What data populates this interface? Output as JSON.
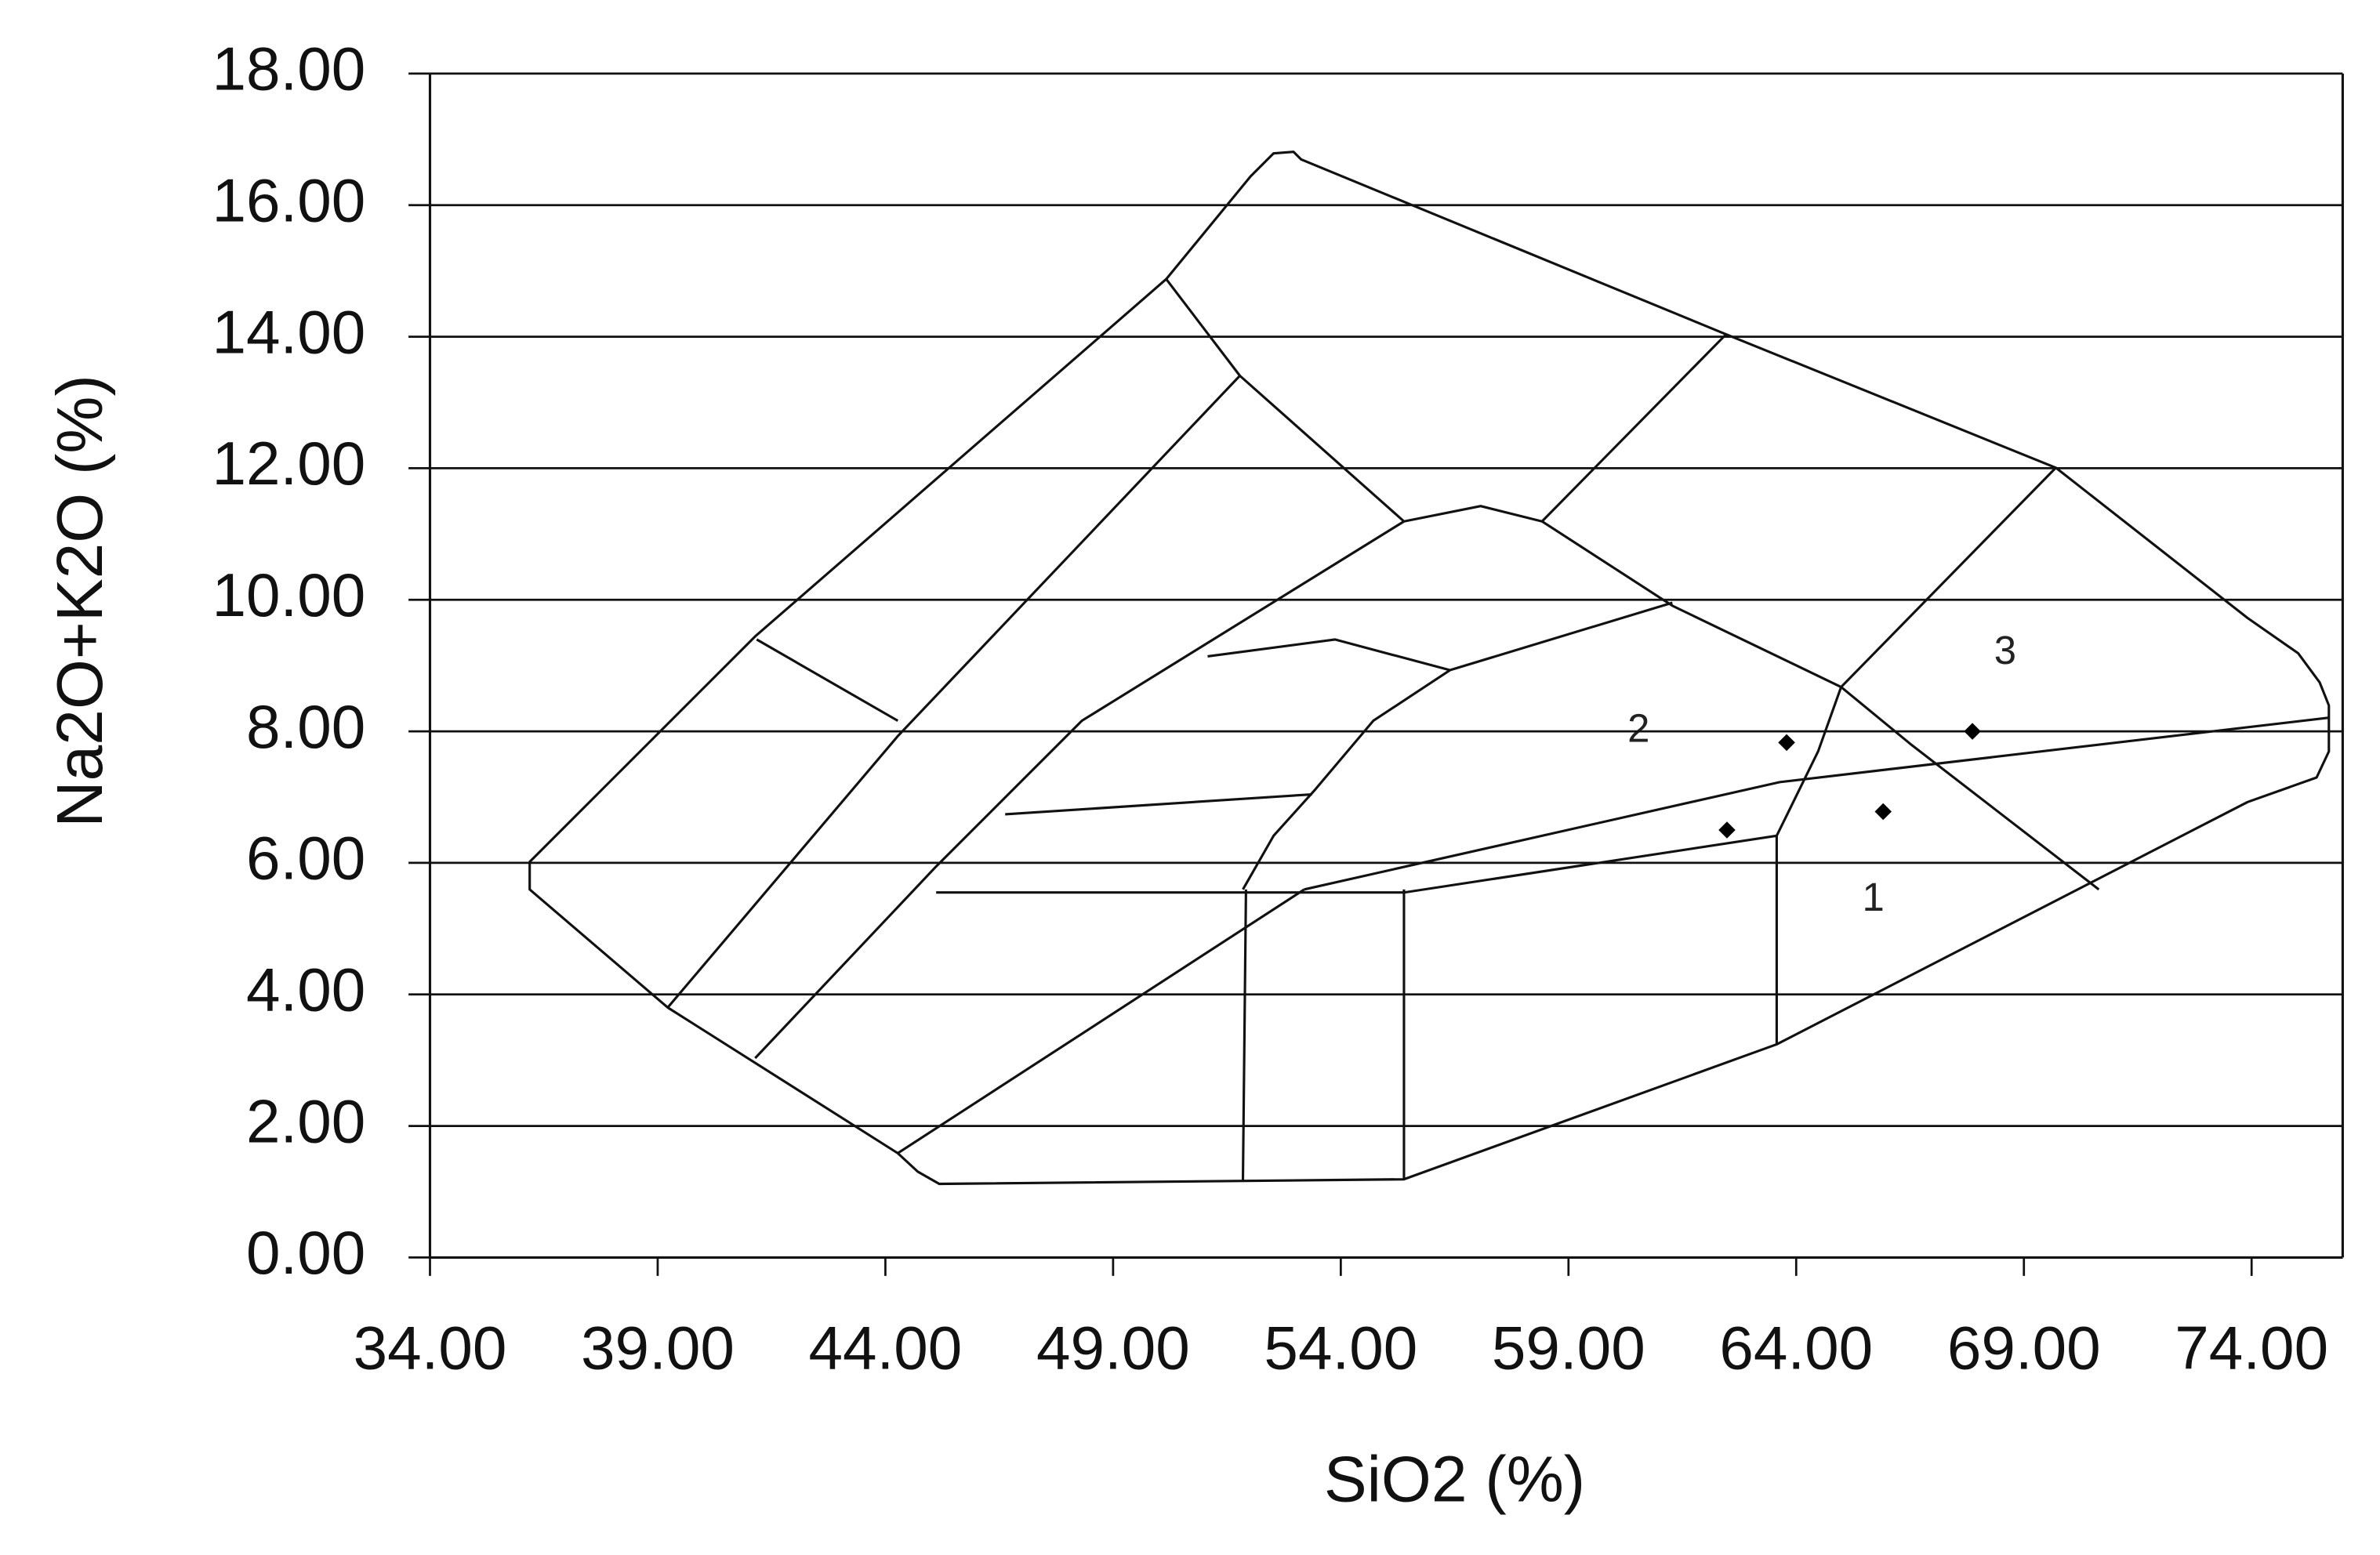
{
  "chart_data": {
    "type": "scatter",
    "x_label": "SiO2 (%)",
    "y_label": "Na2O+K2O (%)",
    "x": [
      62.48,
      63.79,
      65.91,
      67.87
    ],
    "values": [
      6.5,
      7.83,
      6.78,
      8.0
    ],
    "color": "#000000",
    "xlim": [
      34,
      76
    ],
    "ylim": [
      0,
      18
    ],
    "xticks": [
      {
        "value": 34,
        "label": "34.00"
      },
      {
        "value": 39,
        "label": "39.00"
      },
      {
        "value": 44,
        "label": "44.00"
      },
      {
        "value": 49,
        "label": "49.00"
      },
      {
        "value": 54,
        "label": "54.00"
      },
      {
        "value": 59,
        "label": "59.00"
      },
      {
        "value": 64,
        "label": "64.00"
      },
      {
        "value": 69,
        "label": "69.00"
      },
      {
        "value": 74,
        "label": "74.00"
      }
    ],
    "yticks": [
      {
        "value": 0,
        "label": "0.00"
      },
      {
        "value": 2,
        "label": "2.00"
      },
      {
        "value": 4,
        "label": "4.00"
      },
      {
        "value": 6,
        "label": "6.00"
      },
      {
        "value": 8,
        "label": "8.00"
      },
      {
        "value": 10,
        "label": "10.00"
      },
      {
        "value": 12,
        "label": "12.00"
      },
      {
        "value": 14,
        "label": "14.00"
      },
      {
        "value": 16,
        "label": "16.00"
      },
      {
        "value": 18,
        "label": "18.00"
      }
    ],
    "grid": true,
    "annotations": [
      "1",
      "2",
      "3"
    ]
  }
}
